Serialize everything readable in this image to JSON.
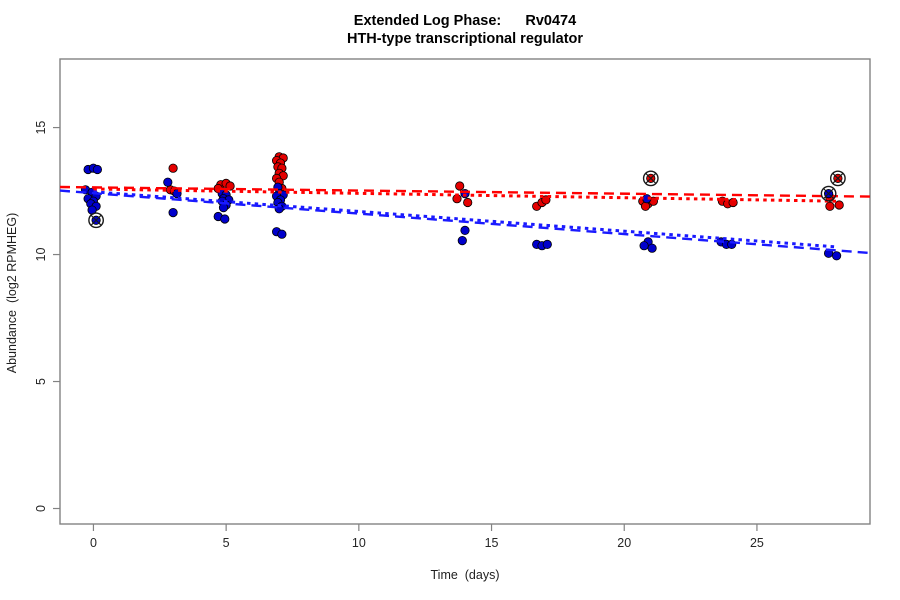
{
  "window": {
    "background": "#ffffff"
  },
  "chart_data": {
    "type": "scatter",
    "title": "Extended Log Phase:      Rv0474",
    "subtitle": "HTH-type transcriptional regulator",
    "xlabel": "Time  (days)",
    "ylabel": "Abundance  (log2 RPMHEG)",
    "xlim": [
      -1.26,
      29.26
    ],
    "ylim": [
      -0.61,
      17.7
    ],
    "xticks": [
      0,
      5,
      10,
      15,
      20,
      25
    ],
    "yticks": [
      0,
      5,
      10,
      15
    ],
    "grid": false,
    "legend": "none",
    "colors": {
      "red": "#e40000",
      "blue": "#0000cc",
      "line_red": "#ff0000",
      "line_blue": "#1a1aff",
      "marker_outline": "#000000",
      "ring_outline": "#1a1a1a",
      "axis": "#828282"
    },
    "series": [
      {
        "name": "red",
        "color_key": "red",
        "points": [
          [
            3.0,
            13.4
          ],
          [
            2.9,
            12.55
          ],
          [
            3.05,
            12.5
          ],
          [
            4.8,
            12.75
          ],
          [
            5.0,
            12.8
          ],
          [
            5.15,
            12.7
          ],
          [
            4.7,
            12.6
          ],
          [
            7.0,
            13.85
          ],
          [
            7.15,
            13.8
          ],
          [
            6.9,
            13.7
          ],
          [
            7.05,
            13.6
          ],
          [
            6.95,
            13.45
          ],
          [
            7.1,
            13.4
          ],
          [
            7.0,
            13.2
          ],
          [
            7.15,
            13.1
          ],
          [
            6.9,
            13.0
          ],
          [
            7.0,
            12.85
          ],
          [
            7.1,
            12.6
          ],
          [
            13.8,
            12.7
          ],
          [
            13.7,
            12.2
          ],
          [
            14.1,
            12.05
          ],
          [
            16.7,
            11.9
          ],
          [
            16.9,
            12.05
          ],
          [
            17.05,
            12.15
          ],
          [
            20.7,
            12.1
          ],
          [
            20.9,
            12.0
          ],
          [
            21.1,
            12.1
          ],
          [
            20.8,
            11.9
          ],
          [
            23.7,
            12.1
          ],
          [
            23.9,
            12.0
          ],
          [
            24.1,
            12.05
          ],
          [
            27.75,
            12.25
          ],
          [
            27.75,
            11.9
          ],
          [
            28.1,
            11.95
          ]
        ]
      },
      {
        "name": "blue",
        "color_key": "blue",
        "points": [
          [
            -0.2,
            13.35
          ],
          [
            0.0,
            13.4
          ],
          [
            0.15,
            13.35
          ],
          [
            -0.3,
            12.55
          ],
          [
            -0.05,
            12.45
          ],
          [
            0.1,
            12.3
          ],
          [
            -0.2,
            12.2
          ],
          [
            0.0,
            12.1
          ],
          [
            -0.1,
            12.0
          ],
          [
            0.1,
            11.9
          ],
          [
            -0.05,
            11.75
          ],
          [
            2.8,
            12.85
          ],
          [
            3.15,
            12.4
          ],
          [
            3.0,
            11.65
          ],
          [
            4.85,
            12.4
          ],
          [
            5.0,
            12.35
          ],
          [
            4.9,
            12.2
          ],
          [
            5.1,
            12.15
          ],
          [
            4.85,
            12.1
          ],
          [
            5.0,
            11.95
          ],
          [
            4.9,
            11.85
          ],
          [
            4.7,
            11.5
          ],
          [
            4.95,
            11.4
          ],
          [
            6.95,
            12.65
          ],
          [
            7.0,
            12.4
          ],
          [
            7.15,
            12.35
          ],
          [
            6.9,
            12.3
          ],
          [
            7.05,
            12.15
          ],
          [
            6.95,
            12.05
          ],
          [
            7.1,
            11.9
          ],
          [
            7.0,
            11.8
          ],
          [
            6.9,
            10.9
          ],
          [
            7.1,
            10.8
          ],
          [
            14.0,
            12.4
          ],
          [
            14.0,
            10.95
          ],
          [
            13.9,
            10.55
          ],
          [
            16.7,
            10.4
          ],
          [
            16.9,
            10.35
          ],
          [
            17.1,
            10.4
          ],
          [
            20.85,
            12.2
          ],
          [
            20.9,
            10.5
          ],
          [
            20.75,
            10.35
          ],
          [
            21.05,
            10.25
          ],
          [
            23.65,
            10.5
          ],
          [
            23.85,
            10.4
          ],
          [
            24.05,
            10.4
          ],
          [
            27.7,
            10.05
          ],
          [
            28.0,
            9.95
          ]
        ]
      }
    ],
    "circled_points": [
      {
        "x": 0.1,
        "y": 11.35,
        "color_key": "blue"
      },
      {
        "x": 21.0,
        "y": 13.0,
        "color_key": "red"
      },
      {
        "x": 28.05,
        "y": 13.0,
        "color_key": "red"
      },
      {
        "x": 27.7,
        "y": 12.4,
        "color_key": "blue"
      }
    ],
    "lines": [
      {
        "name": "red-abline",
        "color_key": "line_red",
        "style": "dashed",
        "x1": -1.26,
        "y1": 12.66,
        "x2": 29.26,
        "y2": 12.28
      },
      {
        "name": "red-fit",
        "color_key": "line_red",
        "style": "dotted",
        "x1": 0.0,
        "y1": 12.58,
        "x2": 28.0,
        "y2": 12.1
      },
      {
        "name": "blue-abline",
        "color_key": "line_blue",
        "style": "dashed",
        "x1": -1.26,
        "y1": 12.52,
        "x2": 29.26,
        "y2": 10.06
      },
      {
        "name": "blue-fit",
        "color_key": "line_blue",
        "style": "dotted",
        "x1": 0.0,
        "y1": 12.47,
        "x2": 28.0,
        "y2": 10.3
      }
    ]
  }
}
